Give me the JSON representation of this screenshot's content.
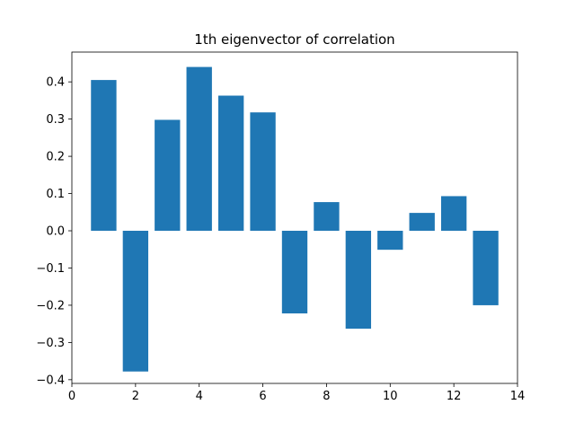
{
  "chart_data": {
    "type": "bar",
    "title": "1th eigenvector of correlation",
    "xlabel": "",
    "ylabel": "",
    "x": [
      1,
      2,
      3,
      4,
      5,
      6,
      7,
      8,
      9,
      10,
      11,
      12,
      13
    ],
    "values": [
      0.405,
      -0.378,
      0.298,
      0.44,
      0.363,
      0.318,
      -0.222,
      0.077,
      -0.263,
      -0.051,
      0.048,
      0.093,
      -0.2
    ],
    "bar_width": 0.8,
    "xlim": [
      0,
      14
    ],
    "ylim": [
      -0.41,
      0.48
    ],
    "xticks": [
      0,
      2,
      4,
      6,
      8,
      10,
      12,
      14
    ],
    "yticks": [
      -0.4,
      -0.3,
      -0.2,
      -0.1,
      0.0,
      0.1,
      0.2,
      0.3,
      0.4
    ],
    "xtick_labels": [
      "0",
      "2",
      "4",
      "6",
      "8",
      "10",
      "12",
      "14"
    ],
    "ytick_labels": [
      "−0.4",
      "−0.3",
      "−0.2",
      "−0.1",
      "0.0",
      "0.1",
      "0.2",
      "0.3",
      "0.4"
    ],
    "bar_color": "#1f77b4",
    "grid": false,
    "legend": "none"
  }
}
